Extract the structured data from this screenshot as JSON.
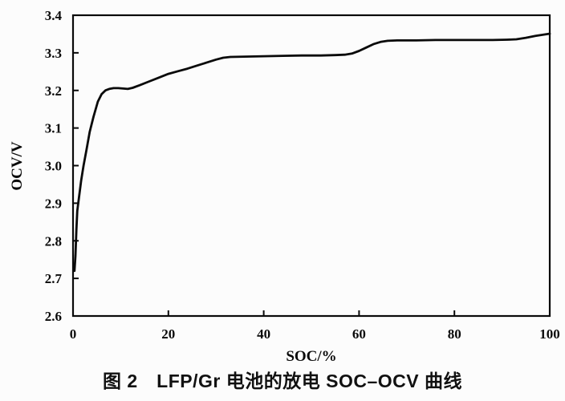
{
  "figure": {
    "caption": "图 2　LFP/Gr 电池的放电 SOC–OCV 曲线"
  },
  "chart_data": {
    "type": "line",
    "title": "",
    "xlabel": "SOC/%",
    "ylabel": "OCV/V",
    "xlim": [
      0,
      100
    ],
    "ylim": [
      2.6,
      3.4
    ],
    "x_ticks": [
      0,
      20,
      40,
      60,
      80,
      100
    ],
    "x_tick_labels": [
      "0",
      "20",
      "40",
      "60",
      "80",
      "100"
    ],
    "y_ticks": [
      2.6,
      2.7,
      2.8,
      2.9,
      3.0,
      3.1,
      3.2,
      3.3,
      3.4
    ],
    "y_tick_labels": [
      "2.6",
      "2.7",
      "2.8",
      "2.9",
      "3.0",
      "3.1",
      "3.2",
      "3.3",
      "3.4"
    ],
    "grid": false,
    "legend": false,
    "line_color": "#0a0a0a",
    "series": [
      {
        "name": "LFP/Gr discharge SOC-OCV",
        "points": [
          [
            0.3,
            2.72
          ],
          [
            0.5,
            2.76
          ],
          [
            0.7,
            2.83
          ],
          [
            0.9,
            2.88
          ],
          [
            1.2,
            2.91
          ],
          [
            1.7,
            2.96
          ],
          [
            2.2,
            3.0
          ],
          [
            2.8,
            3.04
          ],
          [
            3.5,
            3.09
          ],
          [
            4.3,
            3.13
          ],
          [
            5.2,
            3.17
          ],
          [
            6.0,
            3.19
          ],
          [
            6.8,
            3.2
          ],
          [
            7.6,
            3.204
          ],
          [
            8.5,
            3.206
          ],
          [
            9.5,
            3.206
          ],
          [
            10.5,
            3.205
          ],
          [
            11.5,
            3.204
          ],
          [
            12.5,
            3.207
          ],
          [
            14,
            3.214
          ],
          [
            16,
            3.224
          ],
          [
            18,
            3.234
          ],
          [
            20,
            3.244
          ],
          [
            22,
            3.251
          ],
          [
            24,
            3.258
          ],
          [
            26,
            3.266
          ],
          [
            28,
            3.274
          ],
          [
            30,
            3.282
          ],
          [
            31.5,
            3.287
          ],
          [
            33,
            3.289
          ],
          [
            36,
            3.29
          ],
          [
            40,
            3.291
          ],
          [
            44,
            3.292
          ],
          [
            48,
            3.293
          ],
          [
            52,
            3.293
          ],
          [
            55,
            3.294
          ],
          [
            57,
            3.295
          ],
          [
            58.5,
            3.298
          ],
          [
            60,
            3.305
          ],
          [
            61.5,
            3.314
          ],
          [
            63,
            3.323
          ],
          [
            64.5,
            3.329
          ],
          [
            66,
            3.332
          ],
          [
            68,
            3.333
          ],
          [
            72,
            3.333
          ],
          [
            76,
            3.334
          ],
          [
            80,
            3.334
          ],
          [
            84,
            3.334
          ],
          [
            88,
            3.334
          ],
          [
            91,
            3.335
          ],
          [
            93,
            3.336
          ],
          [
            95,
            3.34
          ],
          [
            97,
            3.345
          ],
          [
            98.5,
            3.348
          ],
          [
            100,
            3.351
          ]
        ]
      }
    ]
  }
}
